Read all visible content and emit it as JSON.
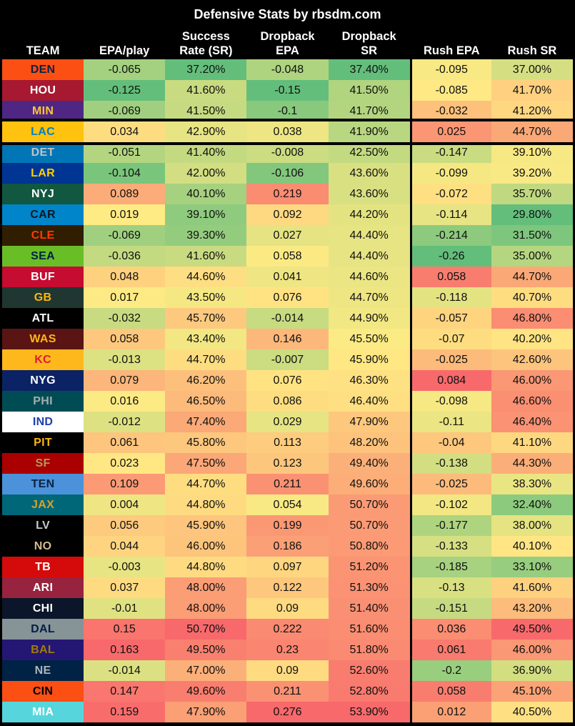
{
  "chart_data": {
    "type": "table",
    "title": "Defensive Stats by rbsdm.com",
    "highlight_team": "LAC",
    "legend_position": "none",
    "grid": false,
    "color_scale": {
      "style": "3-color-scale-per-column",
      "min_color": "#63BE7B",
      "mid_color": "#FFEB84",
      "max_color": "#F8696B"
    },
    "background_color": "#000000",
    "header_text_color": "#FFFFFF",
    "cell_text_color": "#101010",
    "columns": [
      {
        "label": "TEAM"
      },
      {
        "label": "EPA/play"
      },
      {
        "label": "Success\nRate (SR)"
      },
      {
        "label": "Dropback\nEPA"
      },
      {
        "label": "Dropback\nSR"
      },
      {
        "label": "Rush EPA",
        "divider_before": true
      },
      {
        "label": "Rush SR"
      }
    ],
    "rows": [
      {
        "team": "DEN",
        "bg": "#FB4F14",
        "fg": "#0A2343",
        "values": [
          "-0.065",
          "37.20%",
          "-0.048",
          "37.40%",
          "-0.095",
          "37.00%"
        ]
      },
      {
        "team": "HOU",
        "bg": "#A71930",
        "fg": "#FFFFFF",
        "values": [
          "-0.125",
          "41.60%",
          "-0.15",
          "41.50%",
          "-0.085",
          "41.70%"
        ]
      },
      {
        "team": "MIN",
        "bg": "#4F2683",
        "fg": "#FFC62F",
        "values": [
          "-0.069",
          "41.50%",
          "-0.1",
          "41.70%",
          "-0.032",
          "41.20%"
        ]
      },
      {
        "team": "LAC",
        "bg": "#FFC20E",
        "fg": "#0080C6",
        "values": [
          "0.034",
          "42.90%",
          "0.038",
          "41.90%",
          "0.025",
          "44.70%"
        ]
      },
      {
        "team": "DET",
        "bg": "#0076B6",
        "fg": "#BEC4C8",
        "values": [
          "-0.051",
          "41.40%",
          "-0.008",
          "42.50%",
          "-0.147",
          "39.10%"
        ]
      },
      {
        "team": "LAR",
        "bg": "#003594",
        "fg": "#FFD100",
        "values": [
          "-0.104",
          "42.00%",
          "-0.106",
          "43.60%",
          "-0.099",
          "39.20%"
        ]
      },
      {
        "team": "NYJ",
        "bg": "#125740",
        "fg": "#FFFFFF",
        "values": [
          "0.089",
          "40.10%",
          "0.219",
          "43.60%",
          "-0.072",
          "35.70%"
        ]
      },
      {
        "team": "CAR",
        "bg": "#0085CA",
        "fg": "#101820",
        "values": [
          "0.019",
          "39.10%",
          "0.092",
          "44.20%",
          "-0.114",
          "29.80%"
        ]
      },
      {
        "team": "CLE",
        "bg": "#311D00",
        "fg": "#FF3C00",
        "values": [
          "-0.069",
          "39.30%",
          "0.027",
          "44.40%",
          "-0.214",
          "31.50%"
        ]
      },
      {
        "team": "SEA",
        "bg": "#69BE28",
        "fg": "#002244",
        "values": [
          "-0.036",
          "41.60%",
          "0.058",
          "44.40%",
          "-0.26",
          "35.00%"
        ]
      },
      {
        "team": "BUF",
        "bg": "#C60C30",
        "fg": "#FFFFFF",
        "values": [
          "0.048",
          "44.60%",
          "0.041",
          "44.60%",
          "0.058",
          "44.70%"
        ]
      },
      {
        "team": "GB",
        "bg": "#203731",
        "fg": "#FFB612",
        "values": [
          "0.017",
          "43.50%",
          "0.076",
          "44.70%",
          "-0.118",
          "40.70%"
        ]
      },
      {
        "team": "ATL",
        "bg": "#000000",
        "fg": "#FFFFFF",
        "values": [
          "-0.032",
          "45.70%",
          "-0.014",
          "44.90%",
          "-0.057",
          "46.80%"
        ]
      },
      {
        "team": "WAS",
        "bg": "#5A1414",
        "fg": "#FFB612",
        "values": [
          "0.058",
          "43.40%",
          "0.146",
          "45.50%",
          "-0.07",
          "40.20%"
        ]
      },
      {
        "team": "KC",
        "bg": "#FFB81C",
        "fg": "#E31837",
        "values": [
          "-0.013",
          "44.70%",
          "-0.007",
          "45.90%",
          "-0.025",
          "42.60%"
        ]
      },
      {
        "team": "NYG",
        "bg": "#0B2265",
        "fg": "#FFFFFF",
        "values": [
          "0.079",
          "46.20%",
          "0.076",
          "46.30%",
          "0.084",
          "46.00%"
        ]
      },
      {
        "team": "PHI",
        "bg": "#004C54",
        "fg": "#A5ACAF",
        "values": [
          "0.016",
          "46.50%",
          "0.086",
          "46.40%",
          "-0.098",
          "46.60%"
        ]
      },
      {
        "team": "IND",
        "bg": "#FFFFFF",
        "fg": "#1C3FAC",
        "values": [
          "-0.012",
          "47.40%",
          "0.029",
          "47.90%",
          "-0.11",
          "46.40%"
        ]
      },
      {
        "team": "PIT",
        "bg": "#000000",
        "fg": "#FFB612",
        "values": [
          "0.061",
          "45.80%",
          "0.113",
          "48.20%",
          "-0.04",
          "41.10%"
        ]
      },
      {
        "team": "SF",
        "bg": "#AA0000",
        "fg": "#B3995D",
        "values": [
          "0.023",
          "47.50%",
          "0.123",
          "49.40%",
          "-0.138",
          "44.30%"
        ]
      },
      {
        "team": "TEN",
        "bg": "#4B92DB",
        "fg": "#0C2340",
        "values": [
          "0.109",
          "44.70%",
          "0.211",
          "49.60%",
          "-0.025",
          "38.30%"
        ]
      },
      {
        "team": "JAX",
        "bg": "#006778",
        "fg": "#D7A22A",
        "values": [
          "0.004",
          "44.80%",
          "0.054",
          "50.70%",
          "-0.102",
          "32.40%"
        ]
      },
      {
        "team": "LV",
        "bg": "#000000",
        "fg": "#C5CACD",
        "values": [
          "0.056",
          "45.90%",
          "0.199",
          "50.70%",
          "-0.177",
          "38.00%"
        ]
      },
      {
        "team": "NO",
        "bg": "#000000",
        "fg": "#D3BC8D",
        "values": [
          "0.044",
          "46.00%",
          "0.186",
          "50.80%",
          "-0.133",
          "40.10%"
        ]
      },
      {
        "team": "TB",
        "bg": "#D50A0A",
        "fg": "#FFFFFF",
        "values": [
          "-0.003",
          "44.80%",
          "0.097",
          "51.20%",
          "-0.185",
          "33.10%"
        ]
      },
      {
        "team": "ARI",
        "bg": "#97233F",
        "fg": "#FFFFFF",
        "values": [
          "0.037",
          "48.00%",
          "0.122",
          "51.30%",
          "-0.13",
          "41.60%"
        ]
      },
      {
        "team": "CHI",
        "bg": "#0B162A",
        "fg": "#FFFFFF",
        "values": [
          "-0.01",
          "48.00%",
          "0.09",
          "51.40%",
          "-0.151",
          "43.20%"
        ]
      },
      {
        "team": "DAL",
        "bg": "#869397",
        "fg": "#041E42",
        "values": [
          "0.15",
          "50.70%",
          "0.222",
          "51.60%",
          "0.036",
          "49.50%"
        ]
      },
      {
        "team": "BAL",
        "bg": "#241773",
        "fg": "#9E7C0C",
        "values": [
          "0.163",
          "49.50%",
          "0.23",
          "51.80%",
          "0.061",
          "46.00%"
        ]
      },
      {
        "team": "NE",
        "bg": "#002244",
        "fg": "#B0B7BC",
        "values": [
          "-0.014",
          "47.00%",
          "0.09",
          "52.60%",
          "-0.2",
          "36.90%"
        ]
      },
      {
        "team": "CIN",
        "bg": "#FB4F14",
        "fg": "#000000",
        "values": [
          "0.147",
          "49.60%",
          "0.211",
          "52.80%",
          "0.058",
          "45.10%"
        ]
      },
      {
        "team": "MIA",
        "bg": "#56D6DC",
        "fg": "#FFFFFF",
        "values": [
          "0.159",
          "47.90%",
          "0.276",
          "53.90%",
          "0.012",
          "40.50%"
        ]
      }
    ]
  }
}
